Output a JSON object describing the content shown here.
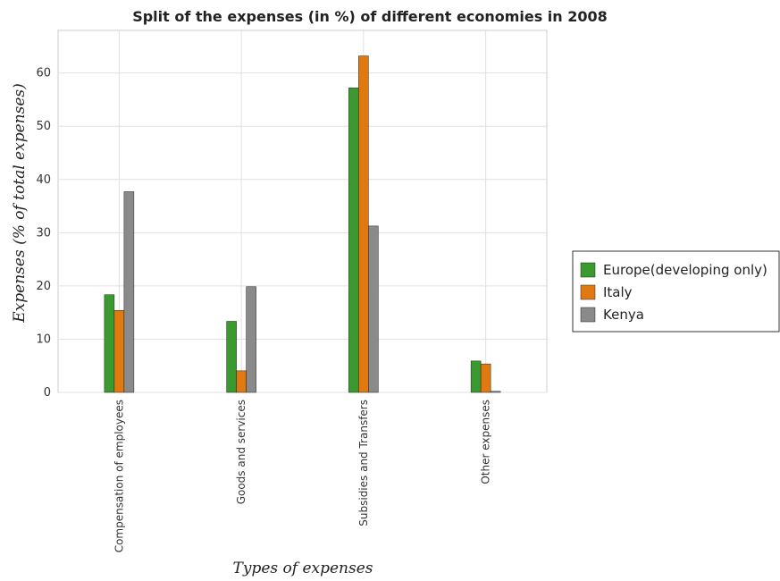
{
  "chart_data": {
    "type": "bar",
    "title": "Split of the expenses (in %) of different economies in 2008",
    "xlabel": "Types of expenses",
    "ylabel": "Expenses (% of total expenses)",
    "categories": [
      "Compensation of employees",
      "Goods and services",
      "Subsidies and Transfers",
      "Other expenses"
    ],
    "series": [
      {
        "name": "Europe(developing only)",
        "color": "#3a9a30",
        "values": [
          18.35,
          13.35,
          57.2,
          5.9
        ]
      },
      {
        "name": "Italy",
        "color": "#e07a10",
        "values": [
          15.4,
          4.05,
          63.2,
          5.35
        ]
      },
      {
        "name": "Kenya",
        "color": "#8a8a8a",
        "values": [
          37.7,
          19.85,
          31.25,
          0.2
        ]
      }
    ],
    "ylim": [
      0,
      68
    ],
    "yticks": [
      "0",
      "10",
      "20",
      "30",
      "40",
      "50",
      "60"
    ],
    "grid": true,
    "legend_position": "right"
  }
}
